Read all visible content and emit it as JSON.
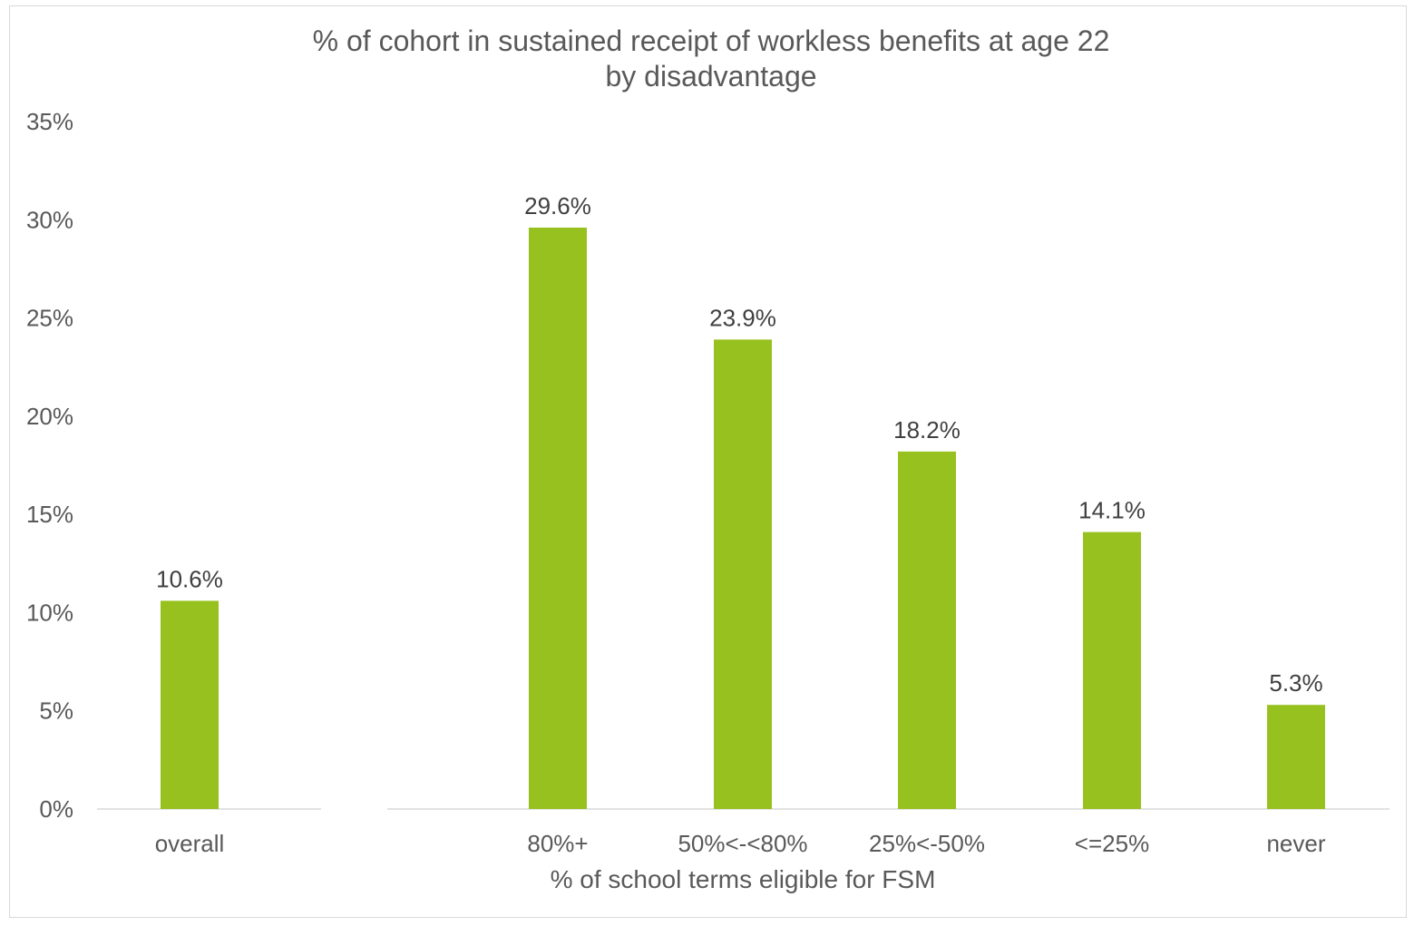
{
  "chart_data": {
    "type": "bar",
    "title": "% of cohort in sustained receipt of workless benefits at age 22",
    "subtitle": "by disadvantage",
    "xlabel": "% of school terms eligible for FSM",
    "ylabel": "",
    "ylim": [
      0,
      35
    ],
    "ytick_values": [
      0,
      5,
      10,
      15,
      20,
      25,
      30,
      35
    ],
    "ytick_labels": [
      "0%",
      "5%",
      "10%",
      "15%",
      "20%",
      "25%",
      "30%",
      "35%"
    ],
    "categories": [
      "overall",
      "80%+",
      "50%<-<80%",
      "25%<-50%",
      "<=25%",
      "never"
    ],
    "values": [
      10.6,
      29.6,
      23.9,
      18.2,
      14.1,
      5.3
    ],
    "data_labels": [
      "10.6%",
      "29.6%",
      "23.9%",
      "18.2%",
      "14.1%",
      "5.3%"
    ],
    "groups": [
      {
        "categories": [
          "overall"
        ]
      },
      {
        "categories": [
          "80%+",
          "50%<-<80%",
          "25%<-50%",
          "<=25%",
          "never"
        ]
      }
    ],
    "bar_color": "#97c11f",
    "axis_color": "#d9d9d9",
    "text_color": "#595959",
    "grid": false,
    "legend": "none"
  }
}
